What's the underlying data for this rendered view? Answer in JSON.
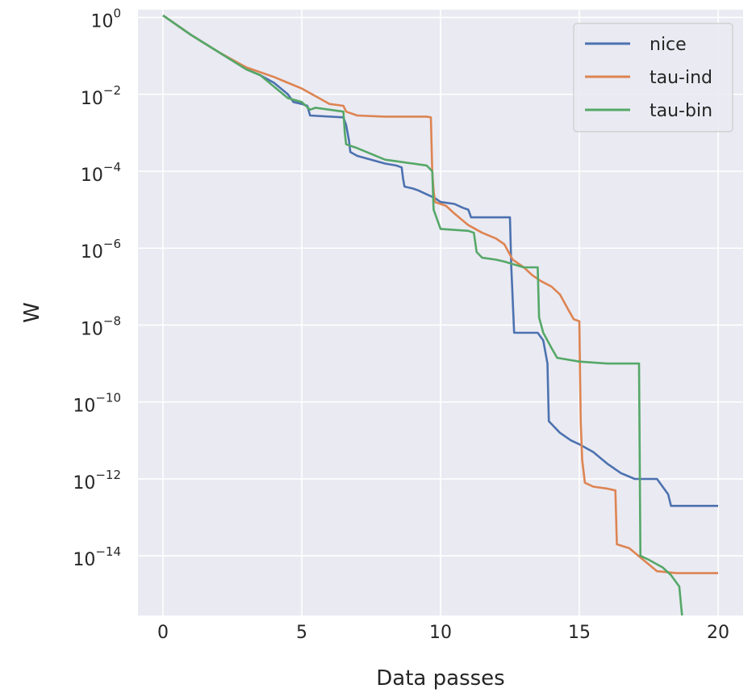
{
  "chart_data": {
    "type": "line",
    "title": "",
    "xlabel": "Data passes",
    "ylabel": "W",
    "xlim": [
      -0.9,
      20.9
    ],
    "ylim_log10": [
      -15.55,
      0.2
    ],
    "yscale": "log",
    "grid": true,
    "background": "#eaeaf2",
    "legend_position": "top-right",
    "x_ticks": [
      0,
      5,
      10,
      15,
      20
    ],
    "y_ticks_exponents": [
      0,
      -2,
      -4,
      -6,
      -8,
      -10,
      -12,
      -14
    ],
    "y_tick_base": "10",
    "series": [
      {
        "name": "nice",
        "color": "#4c72b0",
        "points": [
          [
            0,
            0.05
          ],
          [
            1,
            -0.45
          ],
          [
            2,
            -0.9
          ],
          [
            3,
            -1.35
          ],
          [
            3.5,
            -1.5
          ],
          [
            4,
            -1.7
          ],
          [
            4.5,
            -2.0
          ],
          [
            4.7,
            -2.2
          ],
          [
            5,
            -2.25
          ],
          [
            5.2,
            -2.3
          ],
          [
            5.3,
            -2.55
          ],
          [
            6.5,
            -2.6
          ],
          [
            6.6,
            -2.8
          ],
          [
            6.7,
            -3.2
          ],
          [
            6.75,
            -3.5
          ],
          [
            7,
            -3.6
          ],
          [
            7.5,
            -3.7
          ],
          [
            8,
            -3.8
          ],
          [
            8.4,
            -3.85
          ],
          [
            8.6,
            -3.9
          ],
          [
            8.65,
            -4.2
          ],
          [
            8.7,
            -4.4
          ],
          [
            9,
            -4.45
          ],
          [
            9.2,
            -4.5
          ],
          [
            9.5,
            -4.6
          ],
          [
            9.8,
            -4.7
          ],
          [
            10,
            -4.8
          ],
          [
            10.5,
            -4.85
          ],
          [
            10.8,
            -4.95
          ],
          [
            11,
            -5.0
          ],
          [
            11.1,
            -5.2
          ],
          [
            12.5,
            -5.2
          ],
          [
            12.55,
            -6.5
          ],
          [
            12.65,
            -8.2
          ],
          [
            13.5,
            -8.2
          ],
          [
            13.7,
            -8.4
          ],
          [
            13.85,
            -9.0
          ],
          [
            13.9,
            -10.5
          ],
          [
            14.3,
            -10.8
          ],
          [
            14.7,
            -11.0
          ],
          [
            15,
            -11.1
          ],
          [
            15.5,
            -11.3
          ],
          [
            16,
            -11.6
          ],
          [
            16.5,
            -11.85
          ],
          [
            17,
            -12.0
          ],
          [
            17.5,
            -12.0
          ],
          [
            17.8,
            -12.0
          ],
          [
            18,
            -12.2
          ],
          [
            18.2,
            -12.4
          ],
          [
            18.3,
            -12.7
          ],
          [
            20,
            -12.7
          ]
        ]
      },
      {
        "name": "tau-ind",
        "color": "#dd8452",
        "points": [
          [
            0,
            0.05
          ],
          [
            1,
            -0.45
          ],
          [
            2,
            -0.9
          ],
          [
            3,
            -1.3
          ],
          [
            4,
            -1.55
          ],
          [
            4.5,
            -1.7
          ],
          [
            5,
            -1.85
          ],
          [
            5.5,
            -2.05
          ],
          [
            6,
            -2.25
          ],
          [
            6.5,
            -2.3
          ],
          [
            6.6,
            -2.45
          ],
          [
            7,
            -2.55
          ],
          [
            8,
            -2.58
          ],
          [
            9.5,
            -2.58
          ],
          [
            9.65,
            -2.6
          ],
          [
            9.7,
            -4.0
          ],
          [
            9.75,
            -4.5
          ],
          [
            9.8,
            -4.8
          ],
          [
            10.2,
            -4.9
          ],
          [
            10.5,
            -5.1
          ],
          [
            11,
            -5.4
          ],
          [
            11.5,
            -5.6
          ],
          [
            12,
            -5.75
          ],
          [
            12.3,
            -5.9
          ],
          [
            12.6,
            -6.3
          ],
          [
            13,
            -6.5
          ],
          [
            13.3,
            -6.7
          ],
          [
            13.6,
            -6.85
          ],
          [
            14,
            -7.0
          ],
          [
            14.3,
            -7.2
          ],
          [
            14.6,
            -7.6
          ],
          [
            14.8,
            -7.85
          ],
          [
            15,
            -7.9
          ],
          [
            15.05,
            -10.5
          ],
          [
            15.1,
            -11.5
          ],
          [
            15.2,
            -12.1
          ],
          [
            15.5,
            -12.2
          ],
          [
            16,
            -12.25
          ],
          [
            16.3,
            -12.3
          ],
          [
            16.35,
            -13.7
          ],
          [
            16.8,
            -13.8
          ],
          [
            17.3,
            -14.1
          ],
          [
            17.8,
            -14.4
          ],
          [
            18.5,
            -14.45
          ],
          [
            20,
            -14.45
          ]
        ]
      },
      {
        "name": "tau-bin",
        "color": "#55a868",
        "points": [
          [
            0,
            0.05
          ],
          [
            1,
            -0.45
          ],
          [
            2,
            -0.9
          ],
          [
            3,
            -1.35
          ],
          [
            3.5,
            -1.5
          ],
          [
            4,
            -1.8
          ],
          [
            4.5,
            -2.1
          ],
          [
            5,
            -2.2
          ],
          [
            5.3,
            -2.4
          ],
          [
            5.5,
            -2.35
          ],
          [
            6.5,
            -2.45
          ],
          [
            6.55,
            -3.0
          ],
          [
            6.6,
            -3.3
          ],
          [
            7,
            -3.4
          ],
          [
            8,
            -3.7
          ],
          [
            8.5,
            -3.75
          ],
          [
            9.5,
            -3.85
          ],
          [
            9.7,
            -4.0
          ],
          [
            9.75,
            -5.0
          ],
          [
            9.9,
            -5.3
          ],
          [
            10,
            -5.5
          ],
          [
            11,
            -5.55
          ],
          [
            11.2,
            -5.6
          ],
          [
            11.3,
            -6.1
          ],
          [
            11.5,
            -6.25
          ],
          [
            12,
            -6.3
          ],
          [
            12.3,
            -6.35
          ],
          [
            13,
            -6.5
          ],
          [
            13.5,
            -6.5
          ],
          [
            13.55,
            -7.8
          ],
          [
            13.7,
            -8.2
          ],
          [
            14,
            -8.6
          ],
          [
            14.2,
            -8.85
          ],
          [
            15,
            -8.95
          ],
          [
            16,
            -9.0
          ],
          [
            17,
            -9.0
          ],
          [
            17.15,
            -9.0
          ],
          [
            17.2,
            -14.0
          ],
          [
            17.5,
            -14.1
          ],
          [
            18,
            -14.3
          ],
          [
            18.3,
            -14.5
          ],
          [
            18.6,
            -14.8
          ],
          [
            18.7,
            -15.55
          ]
        ]
      }
    ]
  }
}
